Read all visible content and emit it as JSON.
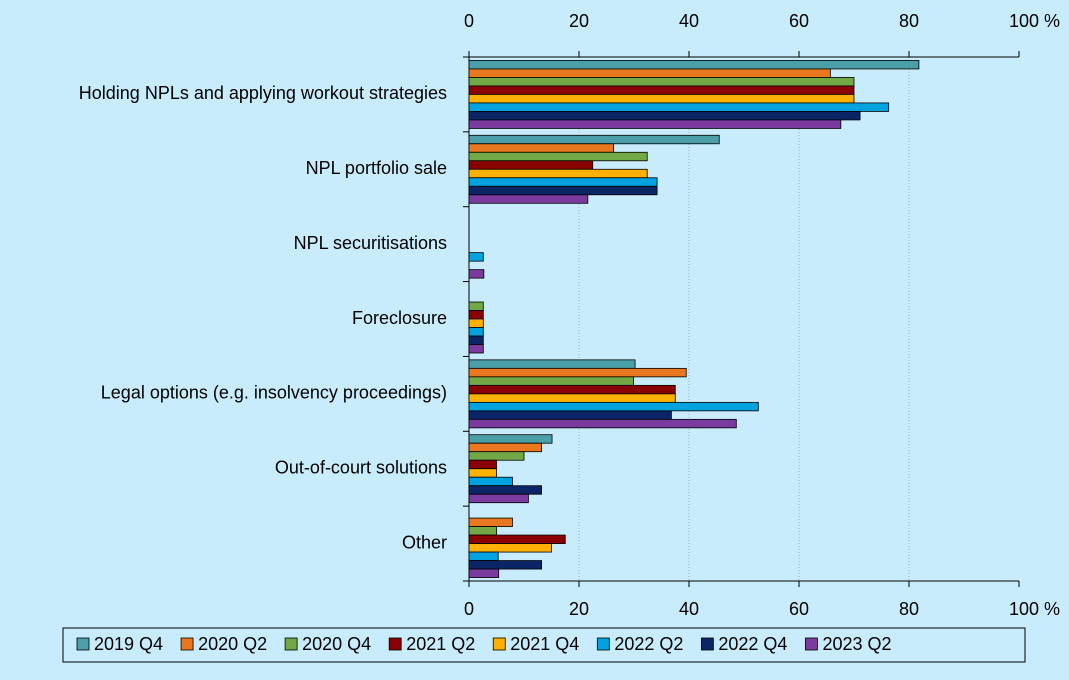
{
  "chart_data": {
    "type": "bar",
    "orientation": "horizontal",
    "categories": [
      "Holding NPLs and applying workout strategies",
      "NPL portfolio sale",
      "NPL securitisations",
      "Foreclosure",
      "Legal options (e.g. insolvency proceedings)",
      "Out-of-court solutions",
      "Other"
    ],
    "series": [
      {
        "name": "2019 Q4",
        "color": "#4a9fa8",
        "values": [
          81.8,
          45.5,
          0,
          0,
          30.2,
          15.1,
          0
        ]
      },
      {
        "name": "2020 Q2",
        "color": "#e8771f",
        "values": [
          65.7,
          26.3,
          0,
          0,
          39.5,
          13.2,
          7.9
        ]
      },
      {
        "name": "2020 Q4",
        "color": "#72a845",
        "values": [
          70,
          32.4,
          0,
          2.6,
          29.9,
          10,
          5
        ]
      },
      {
        "name": "2021 Q2",
        "color": "#8b0000",
        "values": [
          70,
          22.5,
          0,
          2.6,
          37.5,
          5,
          17.5
        ]
      },
      {
        "name": "2021 Q4",
        "color": "#ffb000",
        "values": [
          70,
          32.4,
          0,
          2.6,
          37.5,
          5,
          15
        ]
      },
      {
        "name": "2022 Q2",
        "color": "#00a3e0",
        "values": [
          76.3,
          34.2,
          2.6,
          2.6,
          52.6,
          7.9,
          5.3
        ]
      },
      {
        "name": "2022 Q4",
        "color": "#0b2566",
        "values": [
          71.1,
          34.2,
          0,
          2.6,
          36.8,
          13.2,
          13.2
        ]
      },
      {
        "name": "2023 Q2",
        "color": "#7a3a9e",
        "values": [
          67.6,
          21.6,
          2.7,
          2.6,
          48.6,
          10.8,
          5.4
        ]
      }
    ],
    "xlim": [
      0,
      100
    ],
    "xticks": [
      0,
      20,
      40,
      60,
      80,
      {
        "value": 100,
        "label": "100 %"
      }
    ],
    "grid": true,
    "legend": "bottom"
  }
}
